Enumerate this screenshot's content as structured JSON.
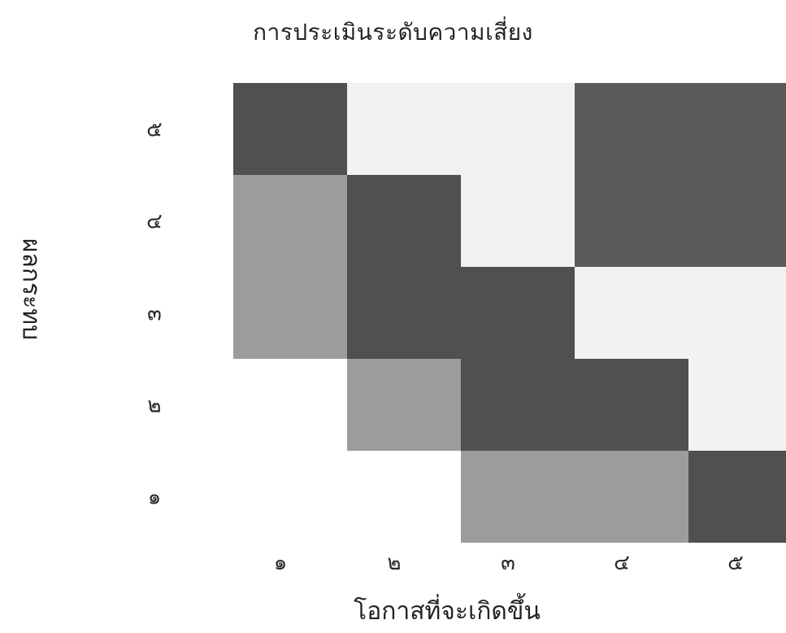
{
  "chart_data": {
    "type": "heatmap",
    "title": "การประเมินระดับความเสี่ยง",
    "xlabel": "โอกาสที่จะเกิดขึ้น",
    "ylabel": "ผลกระทบ",
    "x_categories": [
      "๑",
      "๒",
      "๓",
      "๔",
      "๕"
    ],
    "y_categories": [
      "๑",
      "๒",
      "๓",
      "๔",
      "๕"
    ],
    "legend": "none",
    "grid": false,
    "levels": {
      "low": "#9c9c9c",
      "medium": "#505050",
      "high": "#f2f2f2",
      "very_high": "#5b5b5b"
    },
    "cells": [
      {
        "x": "๒",
        "y": "๑",
        "level": "none"
      },
      {
        "x": "๓",
        "y": "๑",
        "level": "low"
      },
      {
        "x": "๔",
        "y": "๑",
        "level": "low"
      },
      {
        "x": "๕",
        "y": "๑",
        "level": "medium"
      },
      {
        "x": "๑",
        "y": "๒",
        "level": "none"
      },
      {
        "x": "๒",
        "y": "๒",
        "level": "low"
      },
      {
        "x": "๓",
        "y": "๒",
        "level": "medium"
      },
      {
        "x": "๔",
        "y": "๒",
        "level": "medium"
      },
      {
        "x": "๕",
        "y": "๒",
        "level": "high"
      },
      {
        "x": "๑",
        "y": "๓",
        "level": "low"
      },
      {
        "x": "๒",
        "y": "๓",
        "level": "medium"
      },
      {
        "x": "๓",
        "y": "๓",
        "level": "medium"
      },
      {
        "x": "๔",
        "y": "๓",
        "level": "high"
      },
      {
        "x": "๕",
        "y": "๓",
        "level": "high"
      },
      {
        "x": "๑",
        "y": "๔",
        "level": "low"
      },
      {
        "x": "๒",
        "y": "๔",
        "level": "medium"
      },
      {
        "x": "๓",
        "y": "๔",
        "level": "high"
      },
      {
        "x": "๔",
        "y": "๔",
        "level": "very_high"
      },
      {
        "x": "๕",
        "y": "๔",
        "level": "very_high"
      },
      {
        "x": "๑",
        "y": "๕",
        "level": "medium"
      },
      {
        "x": "๒",
        "y": "๕",
        "level": "high"
      },
      {
        "x": "๓",
        "y": "๕",
        "level": "high"
      },
      {
        "x": "๔",
        "y": "๕",
        "level": "very_high"
      },
      {
        "x": "๕",
        "y": "๕",
        "level": "very_high"
      }
    ]
  }
}
